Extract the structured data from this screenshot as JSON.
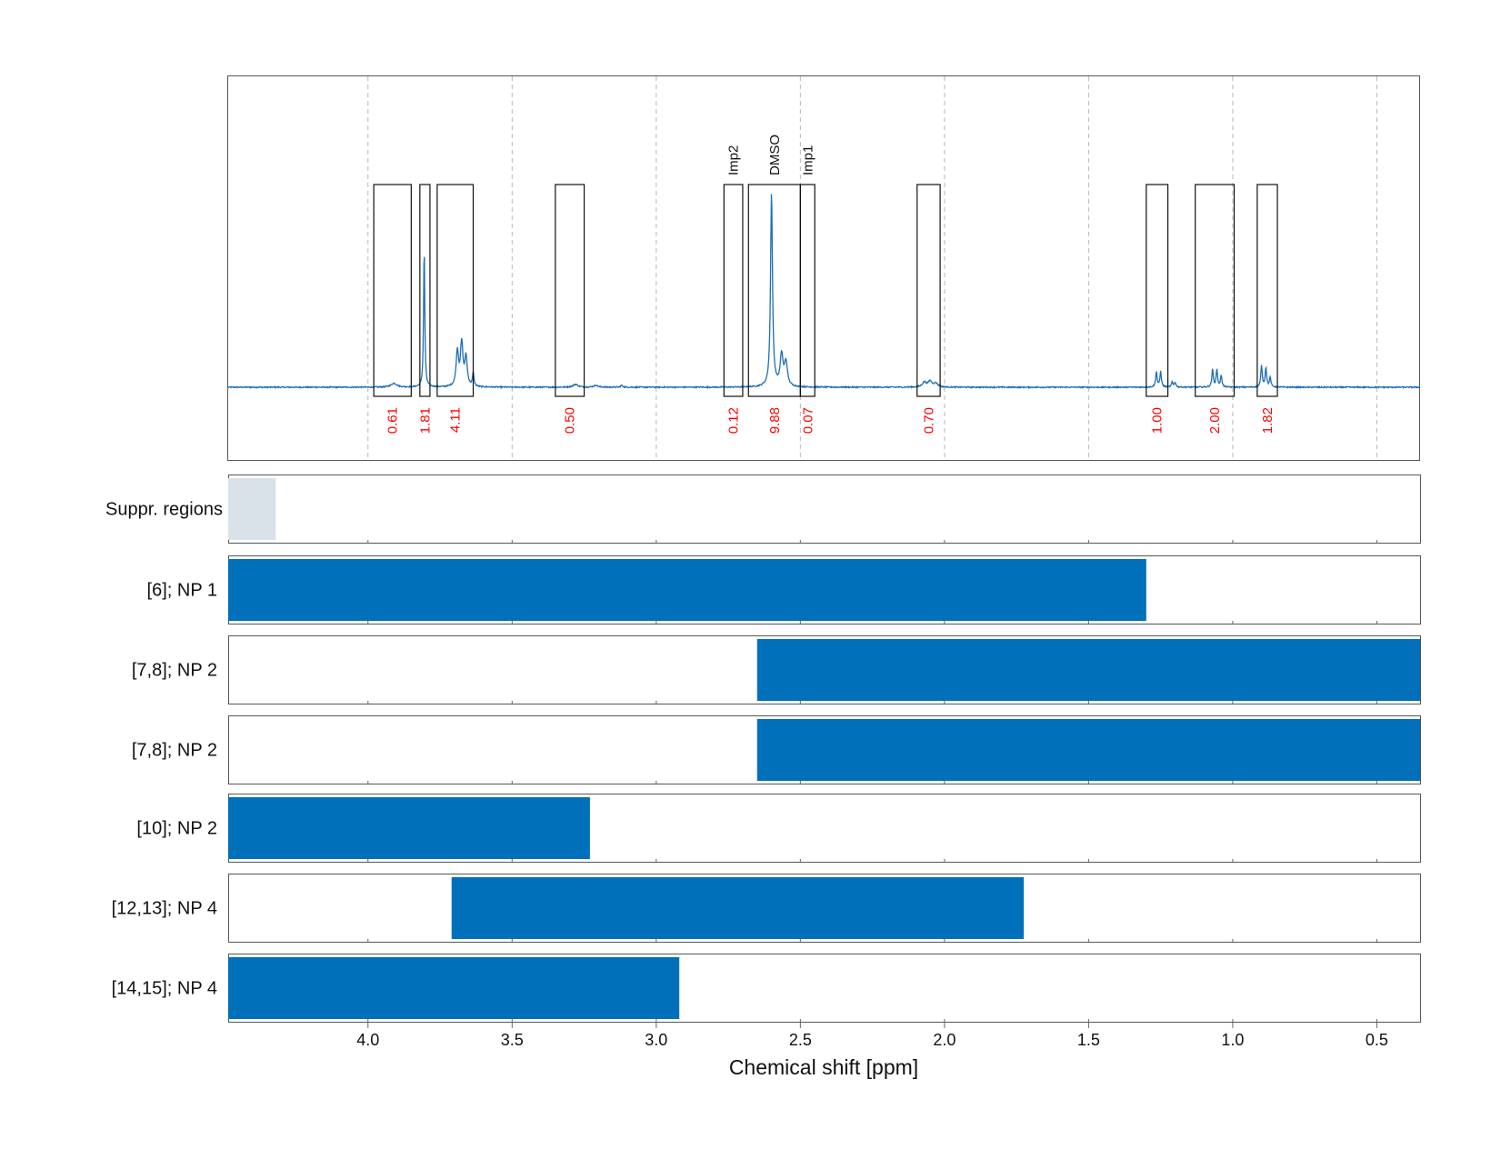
{
  "chart_data": {
    "type": "nmr-spectrum-with-range-bars",
    "xlabel": "Chemical shift [ppm]",
    "xlim": [
      4.485,
      0.35
    ],
    "x_ticks": [
      {
        "value": 4.0,
        "label": "4.0"
      },
      {
        "value": 3.5,
        "label": "3.5"
      },
      {
        "value": 3.0,
        "label": "3.0"
      },
      {
        "value": 2.5,
        "label": "2.5"
      },
      {
        "value": 2.0,
        "label": "2.0"
      },
      {
        "value": 1.5,
        "label": "1.5"
      },
      {
        "value": 1.0,
        "label": "1.0"
      },
      {
        "value": 0.5,
        "label": "0.5"
      }
    ],
    "grid": true,
    "line_color": "#1f6fb4",
    "bar_color": "#0070bb",
    "suppressed_color": "#d9e1e9",
    "label_color": "#ff0000",
    "spectrum_peaks": [
      {
        "ppm": 3.91,
        "height": 0.02,
        "width": 0.012
      },
      {
        "ppm": 3.805,
        "height": 0.72,
        "width": 0.0025
      },
      {
        "ppm": 3.69,
        "height": 0.18,
        "width": 0.005
      },
      {
        "ppm": 3.675,
        "height": 0.22,
        "width": 0.005
      },
      {
        "ppm": 3.66,
        "height": 0.15,
        "width": 0.005
      },
      {
        "ppm": 3.635,
        "height": 0.07,
        "width": 0.003
      },
      {
        "ppm": 3.28,
        "height": 0.015,
        "width": 0.01
      },
      {
        "ppm": 3.21,
        "height": 0.01,
        "width": 0.008
      },
      {
        "ppm": 3.12,
        "height": 0.01,
        "width": 0.004
      },
      {
        "ppm": 2.6,
        "height": 1.0,
        "width": 0.004
      },
      {
        "ppm": 2.565,
        "height": 0.16,
        "width": 0.006
      },
      {
        "ppm": 2.55,
        "height": 0.12,
        "width": 0.006
      },
      {
        "ppm": 2.07,
        "height": 0.025,
        "width": 0.008
      },
      {
        "ppm": 2.05,
        "height": 0.03,
        "width": 0.008
      },
      {
        "ppm": 2.03,
        "height": 0.02,
        "width": 0.008
      },
      {
        "ppm": 1.265,
        "height": 0.08,
        "width": 0.003
      },
      {
        "ppm": 1.25,
        "height": 0.08,
        "width": 0.003
      },
      {
        "ppm": 1.21,
        "height": 0.025,
        "width": 0.003
      },
      {
        "ppm": 1.2,
        "height": 0.025,
        "width": 0.003
      },
      {
        "ppm": 1.07,
        "height": 0.09,
        "width": 0.003
      },
      {
        "ppm": 1.055,
        "height": 0.09,
        "width": 0.003
      },
      {
        "ppm": 1.04,
        "height": 0.06,
        "width": 0.003
      },
      {
        "ppm": 0.9,
        "height": 0.11,
        "width": 0.003
      },
      {
        "ppm": 0.885,
        "height": 0.1,
        "width": 0.003
      },
      {
        "ppm": 0.87,
        "height": 0.05,
        "width": 0.003
      }
    ],
    "integration_regions": [
      {
        "from": 3.98,
        "to": 3.85,
        "value": "0.61",
        "name": ""
      },
      {
        "from": 3.82,
        "to": 3.785,
        "value": "1.81",
        "name": ""
      },
      {
        "from": 3.76,
        "to": 3.635,
        "value": "4.11",
        "name": ""
      },
      {
        "from": 3.35,
        "to": 3.25,
        "value": "0.50",
        "name": ""
      },
      {
        "from": 2.765,
        "to": 2.7,
        "value": "0.12",
        "name": "Imp2"
      },
      {
        "from": 2.68,
        "to": 2.5,
        "value": "9.88",
        "name": "DMSO"
      },
      {
        "from": 2.5,
        "to": 2.45,
        "value": "0.07",
        "name": "Imp1"
      },
      {
        "from": 2.095,
        "to": 2.015,
        "value": "0.70",
        "name": ""
      },
      {
        "from": 1.3,
        "to": 1.225,
        "value": "1.00",
        "name": ""
      },
      {
        "from": 1.13,
        "to": 0.995,
        "value": "2.00",
        "name": ""
      },
      {
        "from": 0.915,
        "to": 0.845,
        "value": "1.82",
        "name": ""
      }
    ],
    "range_rows": [
      {
        "label": "Suppr. regions",
        "from": 4.485,
        "to": 4.32,
        "kind": "suppressed"
      },
      {
        "label": "[6]; NP 1",
        "from": 4.485,
        "to": 1.3,
        "kind": "bar"
      },
      {
        "label": "[7,8]; NP 2",
        "from": 2.65,
        "to": 0.35,
        "kind": "bar"
      },
      {
        "label": "[7,8]; NP 2",
        "from": 2.65,
        "to": 0.35,
        "kind": "bar"
      },
      {
        "label": "[10]; NP 2",
        "from": 4.485,
        "to": 3.23,
        "kind": "bar"
      },
      {
        "label": "[12,13]; NP 4",
        "from": 3.71,
        "to": 1.725,
        "kind": "bar"
      },
      {
        "label": "[14,15]; NP 4",
        "from": 4.485,
        "to": 2.92,
        "kind": "bar"
      }
    ]
  }
}
